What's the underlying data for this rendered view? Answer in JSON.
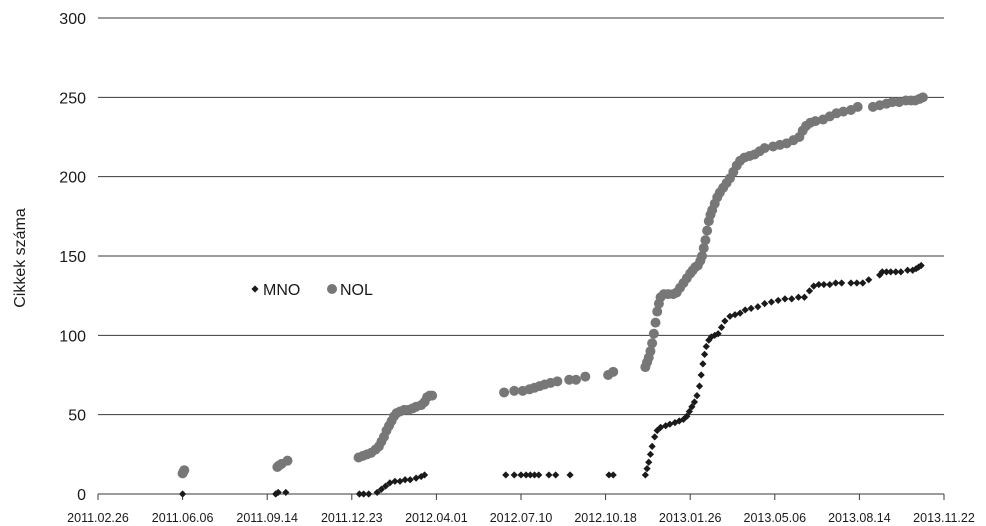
{
  "chart_data": {
    "type": "scatter",
    "title": "",
    "xlabel": "",
    "ylabel": "Cikkek száma",
    "xlim": [
      "2011.02.26",
      "2013.11.22"
    ],
    "ylim": [
      0,
      300
    ],
    "y_ticks": [
      0,
      50,
      100,
      150,
      200,
      250,
      300
    ],
    "x_ticks": [
      "2011.02.26",
      "2011.06.06",
      "2011.09.14",
      "2011.12.23",
      "2012.04.01",
      "2012.07.10",
      "2012.10.18",
      "2013.01.26",
      "2013.05.06",
      "2013.08.14",
      "2013.11.22"
    ],
    "grid": "horizontal",
    "legend_position": "middle-left",
    "series": [
      {
        "name": "MNO",
        "marker": "diamond",
        "color": "#1a1a1a",
        "points": [
          [
            "2011.06.06",
            0
          ],
          [
            "2011.09.24",
            0
          ],
          [
            "2011.09.27",
            1
          ],
          [
            "2011.10.06",
            1
          ],
          [
            "2012.01.01",
            0
          ],
          [
            "2012.01.06",
            0
          ],
          [
            "2012.01.12",
            0
          ],
          [
            "2012.01.22",
            1
          ],
          [
            "2012.01.27",
            3
          ],
          [
            "2012.02.01",
            5
          ],
          [
            "2012.02.06",
            7
          ],
          [
            "2012.02.12",
            8
          ],
          [
            "2012.02.18",
            8
          ],
          [
            "2012.02.24",
            9
          ],
          [
            "2012.03.01",
            9
          ],
          [
            "2012.03.08",
            10
          ],
          [
            "2012.03.14",
            11
          ],
          [
            "2012.03.18",
            12
          ],
          [
            "2012.06.22",
            12
          ],
          [
            "2012.07.02",
            12
          ],
          [
            "2012.07.10",
            12
          ],
          [
            "2012.07.16",
            12
          ],
          [
            "2012.07.21",
            12
          ],
          [
            "2012.07.26",
            12
          ],
          [
            "2012.07.31",
            12
          ],
          [
            "2012.08.12",
            12
          ],
          [
            "2012.08.20",
            12
          ],
          [
            "2012.09.06",
            12
          ],
          [
            "2012.10.22",
            12
          ],
          [
            "2012.10.27",
            12
          ],
          [
            "2012.12.04",
            12
          ],
          [
            "2012.12.06",
            16
          ],
          [
            "2012.12.08",
            20
          ],
          [
            "2012.12.10",
            25
          ],
          [
            "2012.12.12",
            30
          ],
          [
            "2012.12.15",
            36
          ],
          [
            "2012.12.18",
            40
          ],
          [
            "2012.12.22",
            42
          ],
          [
            "2012.12.28",
            43
          ],
          [
            "2013.01.02",
            44
          ],
          [
            "2013.01.08",
            45
          ],
          [
            "2013.01.13",
            46
          ],
          [
            "2013.01.18",
            47
          ],
          [
            "2013.01.22",
            49
          ],
          [
            "2013.01.25",
            52
          ],
          [
            "2013.01.28",
            55
          ],
          [
            "2013.01.31",
            58
          ],
          [
            "2013.02.03",
            62
          ],
          [
            "2013.02.06",
            68
          ],
          [
            "2013.02.08",
            75
          ],
          [
            "2013.02.10",
            82
          ],
          [
            "2013.02.12",
            88
          ],
          [
            "2013.02.14",
            93
          ],
          [
            "2013.02.17",
            97
          ],
          [
            "2013.02.20",
            99
          ],
          [
            "2013.02.24",
            100
          ],
          [
            "2013.02.28",
            101
          ],
          [
            "2013.03.04",
            105
          ],
          [
            "2013.03.08",
            109
          ],
          [
            "2013.03.14",
            112
          ],
          [
            "2013.03.20",
            113
          ],
          [
            "2013.03.26",
            114
          ],
          [
            "2013.04.01",
            116
          ],
          [
            "2013.04.08",
            117
          ],
          [
            "2013.04.16",
            118
          ],
          [
            "2013.04.24",
            120
          ],
          [
            "2013.05.02",
            121
          ],
          [
            "2013.05.10",
            122
          ],
          [
            "2013.05.18",
            123
          ],
          [
            "2013.05.26",
            123
          ],
          [
            "2013.06.03",
            124
          ],
          [
            "2013.06.10",
            124
          ],
          [
            "2013.06.16",
            128
          ],
          [
            "2013.06.21",
            131
          ],
          [
            "2013.06.27",
            132
          ],
          [
            "2013.07.03",
            132
          ],
          [
            "2013.07.10",
            132
          ],
          [
            "2013.07.17",
            133
          ],
          [
            "2013.07.24",
            133
          ],
          [
            "2013.08.04",
            133
          ],
          [
            "2013.08.11",
            133
          ],
          [
            "2013.08.18",
            133
          ],
          [
            "2013.08.25",
            135
          ],
          [
            "2013.09.07",
            138
          ],
          [
            "2013.09.10",
            140
          ],
          [
            "2013.09.15",
            140
          ],
          [
            "2013.09.20",
            140
          ],
          [
            "2013.09.26",
            140
          ],
          [
            "2013.10.02",
            140
          ],
          [
            "2013.10.10",
            141
          ],
          [
            "2013.10.16",
            141
          ],
          [
            "2013.10.20",
            142
          ],
          [
            "2013.10.23",
            143
          ],
          [
            "2013.10.26",
            144
          ]
        ]
      },
      {
        "name": "NOL",
        "marker": "circle",
        "color": "#777777",
        "points": [
          [
            "2011.06.06",
            13
          ],
          [
            "2011.06.07",
            14
          ],
          [
            "2011.06.08",
            15
          ],
          [
            "2011.09.26",
            17
          ],
          [
            "2011.09.28",
            18
          ],
          [
            "2011.10.01",
            19
          ],
          [
            "2011.10.08",
            21
          ],
          [
            "2011.12.31",
            23
          ],
          [
            "2012.01.05",
            24
          ],
          [
            "2012.01.10",
            25
          ],
          [
            "2012.01.15",
            26
          ],
          [
            "2012.01.20",
            28
          ],
          [
            "2012.01.24",
            30
          ],
          [
            "2012.01.27",
            33
          ],
          [
            "2012.01.30",
            36
          ],
          [
            "2012.02.02",
            40
          ],
          [
            "2012.02.05",
            43
          ],
          [
            "2012.02.08",
            46
          ],
          [
            "2012.02.11",
            49
          ],
          [
            "2012.02.14",
            51
          ],
          [
            "2012.02.18",
            52
          ],
          [
            "2012.02.23",
            53
          ],
          [
            "2012.02.28",
            53
          ],
          [
            "2012.03.04",
            54
          ],
          [
            "2012.03.08",
            55
          ],
          [
            "2012.03.14",
            56
          ],
          [
            "2012.03.18",
            58
          ],
          [
            "2012.03.21",
            61
          ],
          [
            "2012.03.24",
            62
          ],
          [
            "2012.03.27",
            62
          ],
          [
            "2012.06.20",
            64
          ],
          [
            "2012.07.02",
            65
          ],
          [
            "2012.07.12",
            65
          ],
          [
            "2012.07.20",
            66
          ],
          [
            "2012.07.26",
            67
          ],
          [
            "2012.08.01",
            68
          ],
          [
            "2012.08.07",
            69
          ],
          [
            "2012.08.14",
            70
          ],
          [
            "2012.08.22",
            71
          ],
          [
            "2012.09.05",
            72
          ],
          [
            "2012.09.13",
            72
          ],
          [
            "2012.09.24",
            74
          ],
          [
            "2012.10.21",
            75
          ],
          [
            "2012.10.27",
            77
          ],
          [
            "2012.12.04",
            80
          ],
          [
            "2012.12.06",
            83
          ],
          [
            "2012.12.08",
            86
          ],
          [
            "2012.12.10",
            90
          ],
          [
            "2012.12.12",
            95
          ],
          [
            "2012.12.14",
            101
          ],
          [
            "2012.12.16",
            108
          ],
          [
            "2012.12.18",
            115
          ],
          [
            "2012.12.20",
            120
          ],
          [
            "2012.12.22",
            124
          ],
          [
            "2012.12.26",
            126
          ],
          [
            "2012.12.31",
            126
          ],
          [
            "2013.01.06",
            126
          ],
          [
            "2013.01.10",
            127
          ],
          [
            "2013.01.14",
            130
          ],
          [
            "2013.01.18",
            133
          ],
          [
            "2013.01.22",
            136
          ],
          [
            "2013.01.26",
            139
          ],
          [
            "2013.01.29",
            141
          ],
          [
            "2013.02.01",
            143
          ],
          [
            "2013.02.04",
            144
          ],
          [
            "2013.02.07",
            147
          ],
          [
            "2013.02.09",
            150
          ],
          [
            "2013.02.11",
            155
          ],
          [
            "2013.02.13",
            160
          ],
          [
            "2013.02.15",
            166
          ],
          [
            "2013.02.17",
            172
          ],
          [
            "2013.02.19",
            176
          ],
          [
            "2013.02.21",
            179
          ],
          [
            "2013.02.24",
            183
          ],
          [
            "2013.02.27",
            187
          ],
          [
            "2013.03.02",
            190
          ],
          [
            "2013.03.06",
            193
          ],
          [
            "2013.03.10",
            196
          ],
          [
            "2013.03.14",
            199
          ],
          [
            "2013.03.18",
            203
          ],
          [
            "2013.03.22",
            207
          ],
          [
            "2013.03.26",
            210
          ],
          [
            "2013.03.31",
            212
          ],
          [
            "2013.04.06",
            213
          ],
          [
            "2013.04.12",
            214
          ],
          [
            "2013.04.18",
            216
          ],
          [
            "2013.04.24",
            218
          ],
          [
            "2013.05.04",
            219
          ],
          [
            "2013.05.12",
            220
          ],
          [
            "2013.05.20",
            221
          ],
          [
            "2013.05.28",
            223
          ],
          [
            "2013.06.04",
            225
          ],
          [
            "2013.06.08",
            229
          ],
          [
            "2013.06.12",
            232
          ],
          [
            "2013.06.17",
            234
          ],
          [
            "2013.06.23",
            235
          ],
          [
            "2013.07.02",
            236
          ],
          [
            "2013.07.10",
            238
          ],
          [
            "2013.07.18",
            240
          ],
          [
            "2013.07.26",
            241
          ],
          [
            "2013.08.04",
            242
          ],
          [
            "2013.08.12",
            244
          ],
          [
            "2013.08.30",
            244
          ],
          [
            "2013.09.07",
            245
          ],
          [
            "2013.09.15",
            246
          ],
          [
            "2013.09.22",
            247
          ],
          [
            "2013.09.30",
            247
          ],
          [
            "2013.10.08",
            248
          ],
          [
            "2013.10.14",
            248
          ],
          [
            "2013.10.19",
            248
          ],
          [
            "2013.10.24",
            249
          ],
          [
            "2013.10.28",
            250
          ]
        ]
      }
    ]
  }
}
